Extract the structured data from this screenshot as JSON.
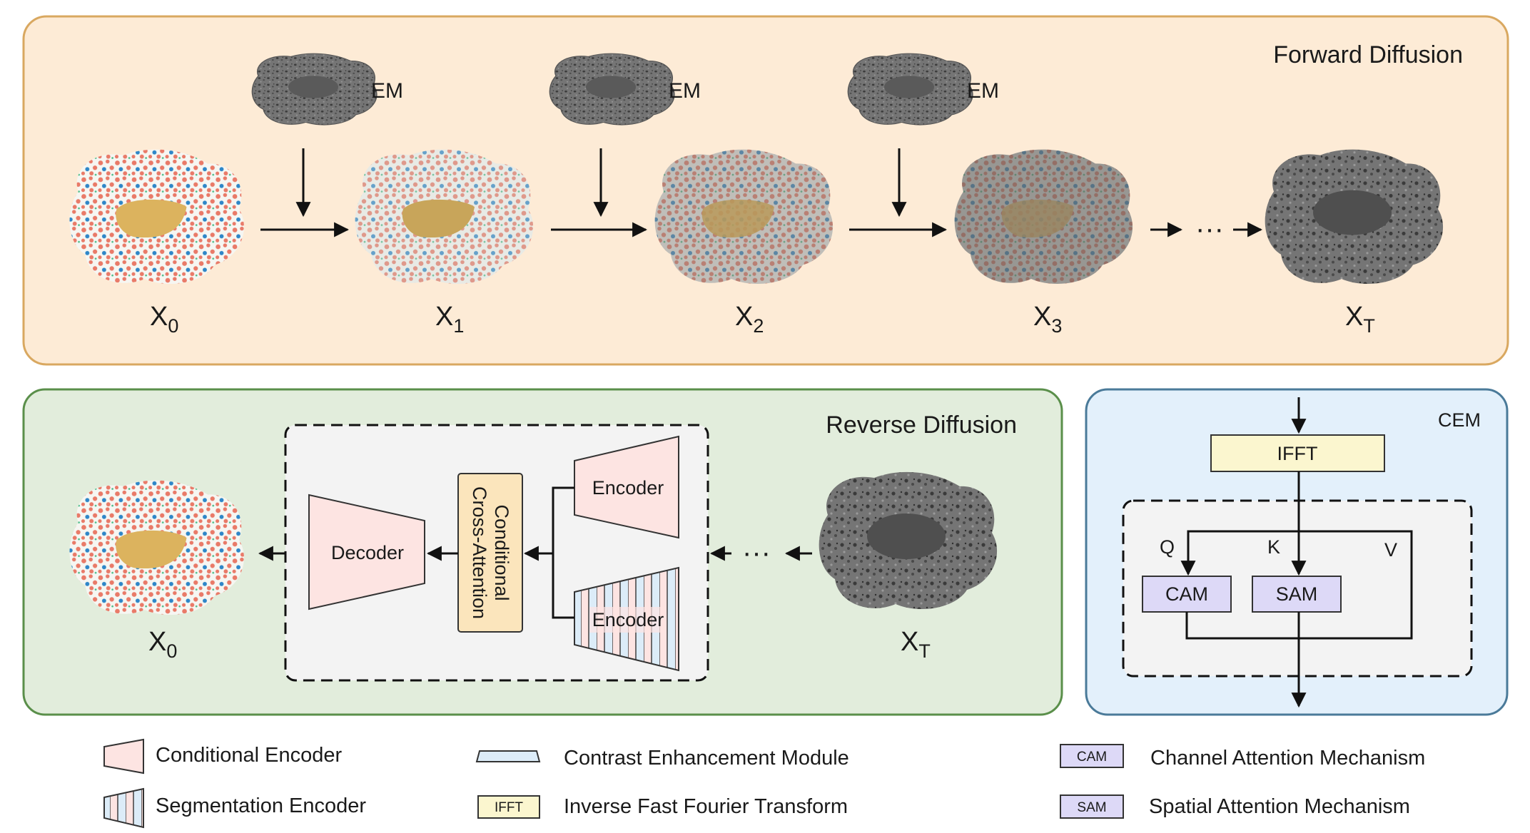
{
  "forward": {
    "title": "Forward Diffusion",
    "em_label": "EM",
    "steps": [
      {
        "base": "X",
        "sub": "0"
      },
      {
        "base": "X",
        "sub": "1"
      },
      {
        "base": "X",
        "sub": "2"
      },
      {
        "base": "X",
        "sub": "3"
      },
      {
        "base": "X",
        "sub": "T"
      }
    ],
    "ellipsis": "···"
  },
  "reverse": {
    "title": "Reverse Diffusion",
    "decoder": "Decoder",
    "cross_attention_line1": "Conditional",
    "cross_attention_line2": "Cross-Attention",
    "encoder_top": "Encoder",
    "encoder_bottom": "Encoder",
    "output": {
      "base": "X",
      "sub": "0"
    },
    "input": {
      "base": "X",
      "sub": "T"
    },
    "ellipsis": "···"
  },
  "cem": {
    "title": "CEM",
    "ifft": "IFFT",
    "q": "Q",
    "k": "K",
    "v": "V",
    "cam": "CAM",
    "sam": "SAM"
  },
  "legend": {
    "conditional_encoder": "Conditional Encoder",
    "segmentation_encoder": "Segmentation Encoder",
    "cem": "Contrast Enhancement Module",
    "ifft_box": "IFFT",
    "ifft": "Inverse Fast Fourier Transform",
    "cam_box": "CAM",
    "cam": "Channel Attention Mechanism",
    "sam_box": "SAM",
    "sam": "Spatial Attention Mechanism"
  },
  "colors": {
    "forward_bg": "#fdebd6",
    "forward_border": "#d9a860",
    "reverse_bg": "#e2eddc",
    "reverse_border": "#5a8f4a",
    "cem_bg": "#e3f0fb",
    "cem_border": "#4a7a99",
    "encoder_fill": "#fde4e2",
    "cross_attention_fill": "#fbe5bc",
    "ifft_fill": "#fbf6cf",
    "attention_fill": "#ddd9f7",
    "organelle_red": "#e97a68",
    "organelle_blue": "#2e86c8",
    "nucleus": "#dcb35e",
    "em_gray": "#6f6f6f"
  }
}
